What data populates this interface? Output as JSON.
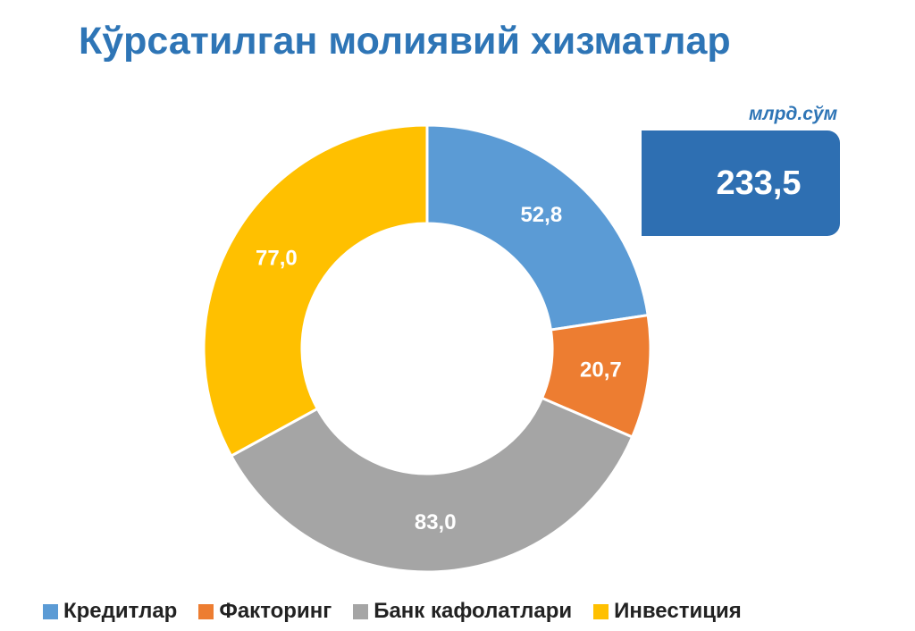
{
  "chart_data": {
    "type": "pie",
    "title": "Кўрсатилган молиявий хизматлар",
    "unit": "млрд.сўм",
    "total": "233,5",
    "categories": [
      "Кредитлар",
      "Факторинг",
      "Банк кафолатлари",
      "Инвестиция"
    ],
    "values": [
      52.8,
      20.7,
      83.0,
      77.0
    ],
    "value_labels": [
      "52,8",
      "20,7",
      "83,0",
      "77,0"
    ],
    "colors": [
      "#5b9bd5",
      "#ed7d31",
      "#a5a5a5",
      "#ffc000"
    ],
    "legend_position": "bottom"
  }
}
